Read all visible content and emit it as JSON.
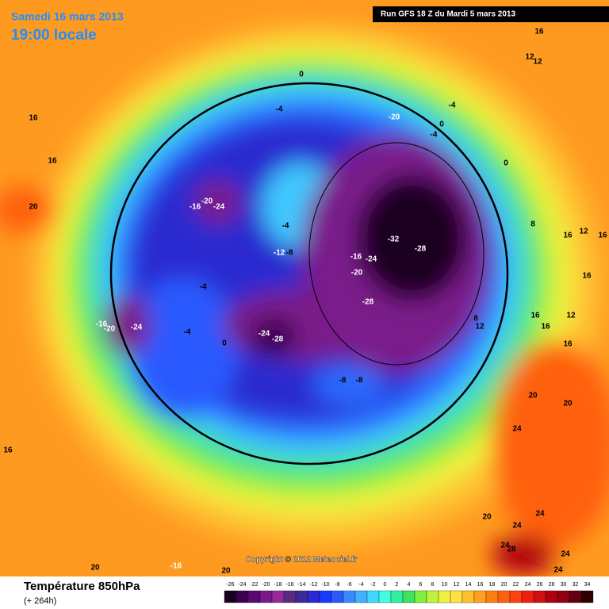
{
  "header": {
    "date": "Samedi 16 mars 2013",
    "time": "19:00 locale"
  },
  "run_info": "Run GFS 18 Z du Mardi 5 mars 2013",
  "copyright": "Copyright © 2012 Meteociel.fr",
  "footer": {
    "title": "Température 850hPa",
    "subtitle": "(+ 264h)"
  },
  "colorbar": {
    "ticks": [
      -26,
      -24,
      -22,
      -20,
      -18,
      -16,
      -14,
      -12,
      -10,
      -8,
      -6,
      -4,
      -2,
      0,
      2,
      4,
      6,
      8,
      10,
      12,
      14,
      16,
      18,
      20,
      22,
      24,
      26,
      28,
      30,
      32,
      34
    ],
    "colors": [
      "#1a0020",
      "#3c0050",
      "#5a0a6e",
      "#7a1a8a",
      "#962a9a",
      "#5a2a80",
      "#3a2a9a",
      "#2a2ad0",
      "#1a3aff",
      "#2a5aff",
      "#3a8aff",
      "#40b0ff",
      "#40d8ff",
      "#40ffe0",
      "#30f0a0",
      "#40e060",
      "#80f040",
      "#c0f040",
      "#f0f040",
      "#ffe040",
      "#ffc030",
      "#ffa020",
      "#ff8010",
      "#ff6010",
      "#ff4010",
      "#f02010",
      "#d01010",
      "#b00010",
      "#900010",
      "#600010",
      "#300000"
    ]
  },
  "map": {
    "labels": [
      0,
      -4,
      -20,
      -4,
      0,
      -4,
      0,
      16,
      16,
      20,
      -16,
      -20,
      -24,
      -4,
      -12,
      -8,
      -32,
      -28,
      -16,
      -24,
      -20,
      -28,
      -4,
      -16,
      -20,
      -24,
      -4,
      0,
      -24,
      -28,
      -8,
      -8,
      16,
      12,
      12,
      8,
      16,
      12,
      16,
      16,
      8,
      12,
      16,
      12,
      16,
      16,
      20,
      20,
      24,
      20,
      24,
      24,
      24,
      28,
      24,
      24,
      16,
      20,
      -16,
      20
    ]
  }
}
